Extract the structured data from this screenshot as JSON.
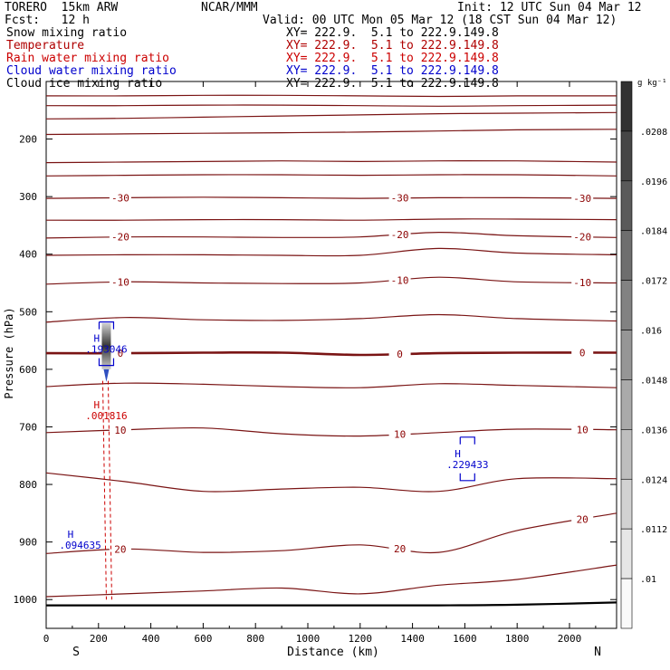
{
  "header": {
    "model": "TORERO  15km ARW",
    "org": "NCAR/MMM",
    "init": "Init: 12 UTC Sun 04 Mar 12",
    "fcst": "Fcst:   12 h",
    "valid": "Valid: 00 UTC Mon 05 Mar 12 (18 CST Sun 04 Mar 12)"
  },
  "fields": [
    {
      "name": "Snow mixing ratio",
      "xy": "XY= 222.9.  5.1 to 222.9.149.8",
      "color": "#000000"
    },
    {
      "name": "Temperature",
      "xy": "XY= 222.9.  5.1 to 222.9.149.8",
      "color": "#b00000"
    },
    {
      "name": "Rain water mixing ratio",
      "xy": "XY= 222.9.  5.1 to 222.9.149.8",
      "color": "#cc0000"
    },
    {
      "name": "Cloud water mixing ratio",
      "xy": "XY= 222.9.  5.1 to 222.9.149.8",
      "color": "#0000cc"
    },
    {
      "name": "Cloud ice mixing ratio",
      "xy": "XY= 222.9.  5.1 to 222.9.149.8",
      "color": "#000000"
    }
  ],
  "chart_data": {
    "type": "contour-cross-section",
    "xlabel": "Distance (km)",
    "ylabel": "Pressure (hPa)",
    "xlim": [
      0,
      2180
    ],
    "ylim": [
      1050,
      100
    ],
    "x_ticks": [
      "0",
      "200",
      "400",
      "600",
      "800",
      "1000",
      "1200",
      "1400",
      "1600",
      "1800",
      "2000"
    ],
    "y_ticks": [
      "200",
      "300",
      "400",
      "500",
      "600",
      "700",
      "800",
      "900",
      "1000"
    ],
    "x_end_labels": {
      "left": "S",
      "right": "N"
    },
    "isotherms": [
      {
        "level": -60,
        "label": "",
        "pressure": [
          125,
          125,
          124,
          124,
          125,
          126,
          125,
          125
        ],
        "dist": [
          0,
          300,
          600,
          900,
          1200,
          1500,
          1800,
          2180
        ]
      },
      {
        "level": -55,
        "label": "",
        "pressure": [
          142,
          142,
          141,
          141,
          142,
          143,
          142,
          141
        ],
        "dist": [
          0,
          300,
          600,
          900,
          1200,
          1500,
          1800,
          2180
        ]
      },
      {
        "level": -50,
        "label": "",
        "pressure": [
          165,
          164,
          162,
          160,
          158,
          156,
          155,
          154
        ],
        "dist": [
          0,
          300,
          600,
          900,
          1200,
          1500,
          1800,
          2180
        ]
      },
      {
        "level": -45,
        "label": "",
        "pressure": [
          192,
          191,
          190,
          189,
          188,
          186,
          184,
          183
        ],
        "dist": [
          0,
          300,
          600,
          900,
          1200,
          1500,
          1800,
          2180
        ]
      },
      {
        "level": -40,
        "label": "",
        "pressure": [
          241,
          240,
          239,
          238,
          239,
          238,
          238,
          240
        ],
        "dist": [
          0,
          300,
          600,
          900,
          1200,
          1500,
          1800,
          2180
        ]
      },
      {
        "level": -35,
        "label": "",
        "pressure": [
          264,
          263,
          262,
          262,
          263,
          262,
          262,
          264
        ],
        "dist": [
          0,
          300,
          600,
          900,
          1200,
          1500,
          1800,
          2180
        ]
      },
      {
        "level": -30,
        "label": "-30",
        "pressure": [
          303,
          302,
          301,
          302,
          303,
          302,
          302,
          303
        ],
        "dist": [
          0,
          300,
          600,
          900,
          1200,
          1500,
          1800,
          2180
        ]
      },
      {
        "level": -25,
        "label": "",
        "pressure": [
          341,
          341,
          340,
          340,
          341,
          339,
          339,
          340
        ],
        "dist": [
          0,
          300,
          600,
          900,
          1200,
          1500,
          1800,
          2180
        ]
      },
      {
        "level": -20,
        "label": "-20",
        "pressure": [
          372,
          370,
          370,
          371,
          370,
          362,
          368,
          371
        ],
        "dist": [
          0,
          300,
          600,
          900,
          1200,
          1500,
          1800,
          2180
        ]
      },
      {
        "level": -15,
        "label": "",
        "pressure": [
          402,
          401,
          401,
          402,
          402,
          390,
          398,
          401
        ],
        "dist": [
          0,
          300,
          600,
          900,
          1200,
          1500,
          1800,
          2180
        ]
      },
      {
        "level": -10,
        "label": "-10",
        "pressure": [
          452,
          448,
          450,
          451,
          450,
          440,
          448,
          450
        ],
        "dist": [
          0,
          300,
          600,
          900,
          1200,
          1500,
          1800,
          2180
        ]
      },
      {
        "level": -5,
        "label": "",
        "pressure": [
          518,
          510,
          514,
          515,
          512,
          505,
          512,
          516
        ],
        "dist": [
          0,
          300,
          600,
          900,
          1200,
          1500,
          1800,
          2180
        ]
      },
      {
        "level": 0,
        "label": "0",
        "pressure": [
          572,
          572,
          571,
          571,
          575,
          572,
          571,
          571
        ],
        "dist": [
          0,
          300,
          600,
          900,
          1200,
          1500,
          1800,
          2180
        ]
      },
      {
        "level": 5,
        "label": "",
        "pressure": [
          630,
          624,
          626,
          630,
          632,
          625,
          628,
          632
        ],
        "dist": [
          0,
          300,
          600,
          900,
          1200,
          1500,
          1800,
          2180
        ]
      },
      {
        "level": 10,
        "label": "10",
        "pressure": [
          710,
          705,
          702,
          712,
          716,
          710,
          704,
          705
        ],
        "dist": [
          0,
          300,
          600,
          900,
          1200,
          1500,
          1800,
          2180
        ]
      },
      {
        "level": 15,
        "label": "",
        "pressure": [
          780,
          795,
          812,
          808,
          805,
          812,
          790,
          790
        ],
        "dist": [
          0,
          300,
          600,
          900,
          1200,
          1500,
          1800,
          2180
        ]
      },
      {
        "level": 20,
        "label": "20",
        "pressure": [
          920,
          912,
          918,
          915,
          905,
          918,
          880,
          850
        ],
        "dist": [
          0,
          300,
          600,
          900,
          1200,
          1500,
          1800,
          2180
        ]
      },
      {
        "level": 25,
        "label": "",
        "pressure": [
          995,
          990,
          985,
          980,
          990,
          975,
          965,
          940
        ],
        "dist": [
          0,
          300,
          600,
          900,
          1200,
          1500,
          1800,
          2180
        ]
      }
    ],
    "surface": {
      "pressure": [
        1010,
        1010,
        1010,
        1010,
        1010,
        1010,
        1009,
        1005
      ],
      "dist": [
        0,
        300,
        600,
        900,
        1200,
        1500,
        1800,
        2180
      ]
    },
    "maxima": [
      {
        "mark": "H",
        "value": ".193046",
        "dist": 230,
        "pressure": 565,
        "color": "#0000cc"
      },
      {
        "mark": "H",
        "value": ".001816",
        "dist": 230,
        "pressure": 680,
        "color": "#cc0000"
      },
      {
        "mark": "H",
        "value": ".229433",
        "dist": 1610,
        "pressure": 765,
        "color": "#0000cc"
      },
      {
        "mark": "H",
        "value": ".094635",
        "dist": 130,
        "pressure": 905,
        "color": "#0000cc"
      }
    ],
    "colorbar": {
      "unit": "g kg⁻¹",
      "ticks": [
        ".0208",
        ".0196",
        ".0184",
        ".0172",
        ".016",
        ".0148",
        ".0136",
        ".0124",
        ".0112",
        ".01"
      ]
    }
  }
}
